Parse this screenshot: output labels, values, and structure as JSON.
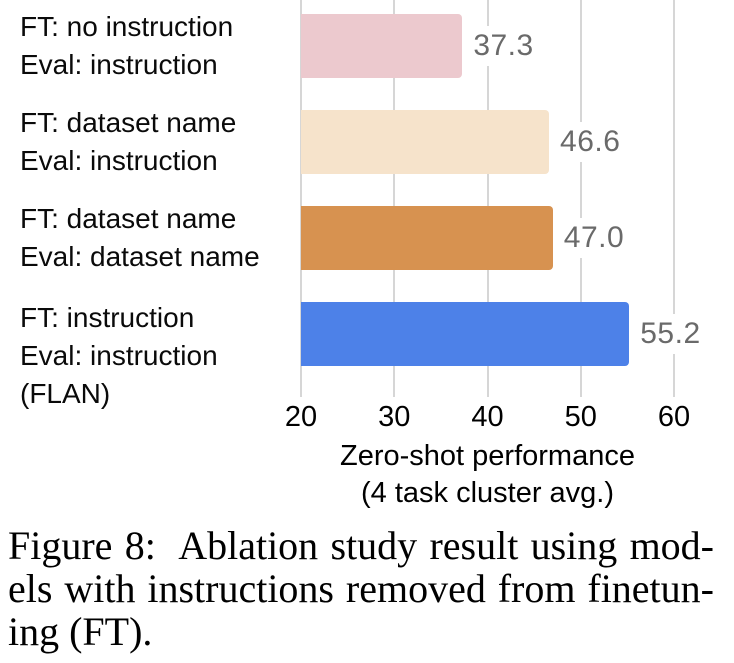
{
  "chart_data": {
    "type": "bar",
    "orientation": "horizontal",
    "title": "",
    "xlabel": "Zero-shot performance (4 task cluster avg.)",
    "xlabel_lines": [
      "Zero-shot performance",
      "(4 task cluster avg.)"
    ],
    "ylabel": "",
    "xlim": [
      20,
      66
    ],
    "xticks": [
      20,
      30,
      40,
      50,
      60
    ],
    "grid": "vertical",
    "legend": "none",
    "categories": [
      [
        "FT: no instruction",
        "Eval: instruction"
      ],
      [
        "FT: dataset name",
        "Eval: instruction"
      ],
      [
        "FT: dataset name",
        "Eval: dataset name"
      ],
      [
        "FT: instruction",
        "Eval: instruction",
        "(FLAN)"
      ]
    ],
    "values": [
      37.3,
      46.6,
      47.0,
      55.2
    ],
    "value_labels": [
      "37.3",
      "46.6",
      "47.0",
      "55.2"
    ],
    "bar_colors": [
      "#ecc9ce",
      "#f6e3cb",
      "#d79250",
      "#4d81e8"
    ],
    "colors": {
      "value_label": "#6a6a6a",
      "gridline": "#d6d6d6",
      "tick_label": "#000000",
      "category_label": "#0a0a0a"
    }
  },
  "caption": {
    "figure_label": "Figure 8:",
    "lines": [
      "Figure 8:  Ablation study result using mod-",
      "els with instructions removed from finetun-",
      "ing (FT)."
    ]
  }
}
